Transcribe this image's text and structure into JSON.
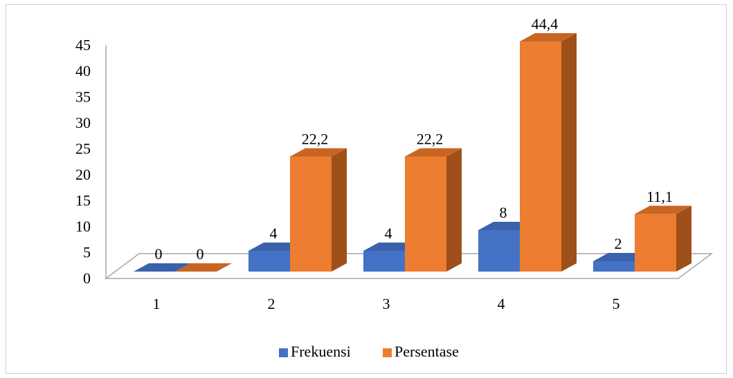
{
  "chart_data": {
    "type": "bar",
    "categories": [
      "1",
      "2",
      "3",
      "4",
      "5"
    ],
    "series": [
      {
        "name": "Frekuensi",
        "values": [
          0,
          4,
          4,
          8,
          2
        ],
        "labels": [
          "0",
          "4",
          "4",
          "8",
          "2"
        ],
        "color": "#4472C4",
        "side_color": "#2F528F",
        "top_color": "#3A62AB"
      },
      {
        "name": "Persentase",
        "values": [
          0,
          22.2,
          22.2,
          44.4,
          11.1
        ],
        "labels": [
          "0",
          "22,2",
          "22,2",
          "44,4",
          "11,1"
        ],
        "color": "#ED7D31",
        "side_color": "#9E4F1A",
        "top_color": "#C96522"
      }
    ],
    "y_ticks": [
      "0",
      "5",
      "10",
      "15",
      "20",
      "25",
      "30",
      "35",
      "40",
      "45"
    ],
    "ylim": [
      0,
      45
    ],
    "legend_position": "bottom",
    "grid": false,
    "three_d": true
  }
}
